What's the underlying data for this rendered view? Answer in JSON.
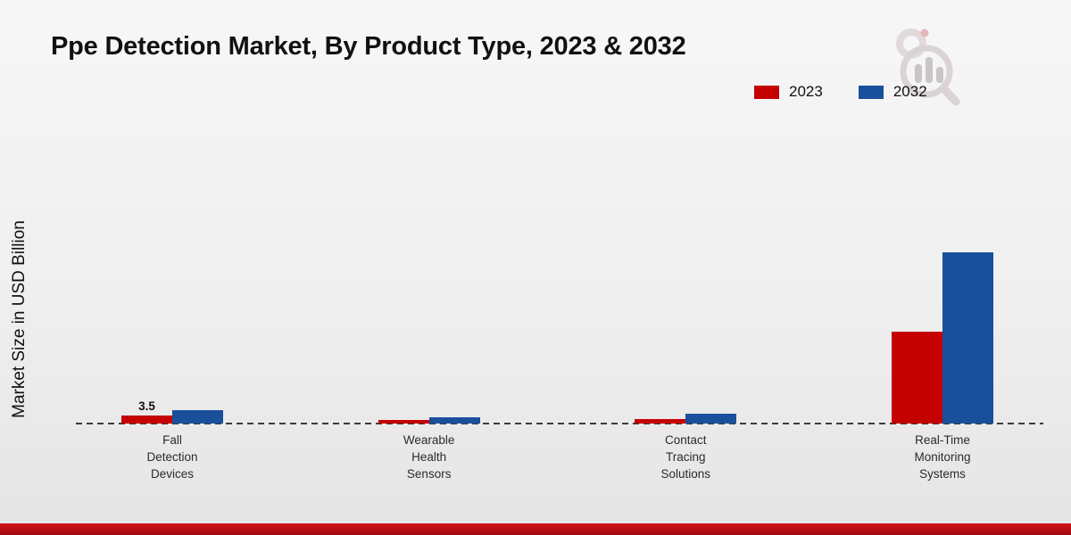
{
  "chart_data": {
    "type": "bar",
    "title": "Ppe Detection Market, By Product Type, 2023 & 2032",
    "ylabel": "Market Size in USD Billion",
    "xlabel": "",
    "categories": [
      "Fall Detection Devices",
      "Wearable Health Sensors",
      "Contact Tracing Solutions",
      "Real-Time Monitoring Systems"
    ],
    "series": [
      {
        "name": "2023",
        "color": "#c40001",
        "values": [
          3.5,
          1.5,
          2.0,
          38.5
        ]
      },
      {
        "name": "2032",
        "color": "#1a4f9c",
        "values": [
          5.5,
          2.8,
          4.2,
          72.0
        ]
      }
    ],
    "data_labels": [
      {
        "series": "2023",
        "category": "Fall Detection Devices",
        "text": "3.5"
      }
    ],
    "ylim": [
      0,
      80
    ],
    "grid": false,
    "legend_position": "top-right",
    "baseline_style": "dashed"
  },
  "branding": {
    "watermark_icon": "market-research-logo"
  }
}
